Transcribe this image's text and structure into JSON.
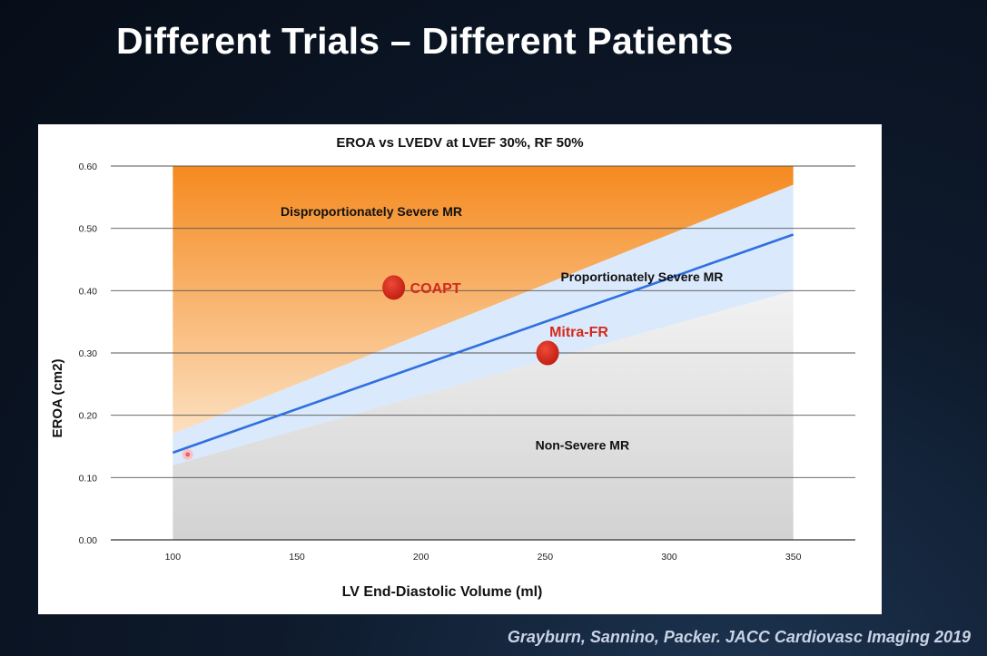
{
  "slide": {
    "title": "Different Trials – Different Patients",
    "citation": "Grayburn, Sannino, Packer. JACC Cardiovasc Imaging 2019"
  },
  "chart_data": {
    "type": "line",
    "title": "EROA vs LVEDV at LVEF 30%, RF 50%",
    "xlabel": "LV End-Diastolic Volume (ml)",
    "ylabel": "EROA (cm2)",
    "xlim": [
      75,
      375
    ],
    "ylim": [
      0,
      0.6
    ],
    "x_ticks": [
      100,
      150,
      200,
      250,
      300,
      350
    ],
    "x_tick_labels": [
      "100",
      "150",
      "200",
      "250",
      "300",
      "350"
    ],
    "y_ticks": [
      0,
      0.1,
      0.2,
      0.3,
      0.4,
      0.5,
      0.6
    ],
    "y_tick_labels": [
      "0.00",
      "0.10",
      "0.20",
      "0.30",
      "0.40",
      "0.50",
      "0.60"
    ],
    "grid": "horizontal",
    "series": [
      {
        "x": [
          100,
          350
        ],
        "y": [
          0.14,
          0.49
        ],
        "color": "#2f6fe0"
      }
    ],
    "band": {
      "x": [
        100,
        350
      ],
      "upper": [
        0.17,
        0.57
      ],
      "lower": [
        0.12,
        0.4
      ],
      "color": "#d8e8fb"
    },
    "regions": [
      {
        "label": "Disproportionately Severe MR",
        "x": 180,
        "y": 0.52,
        "fill": "#f7a04a"
      },
      {
        "label": "Proportionately Severe MR",
        "x": 289,
        "y": 0.415,
        "fill": "#d8e8fb"
      },
      {
        "label": "Non-Severe MR",
        "x": 265,
        "y": 0.145,
        "fill": "#dddddd"
      }
    ],
    "points": [
      {
        "label": "COAPT",
        "x": 189,
        "y": 0.405,
        "color": "#d42a1c",
        "label_color": "#d42a1c"
      },
      {
        "label": "Mitra-FR",
        "x": 251,
        "y": 0.3,
        "color": "#d42a1c",
        "label_color": "#d42a1c"
      },
      {
        "label": "",
        "x": 106,
        "y": 0.137,
        "color": "#e8606a",
        "label_color": "#e8606a"
      }
    ],
    "colors": {
      "line": "#2f6fe0",
      "orange_top": "#f58a1f",
      "orange_bottom": "#fbd8b0",
      "band": "#d8e8fb",
      "grey": "#dedede",
      "point": "#d42a1c"
    }
  }
}
